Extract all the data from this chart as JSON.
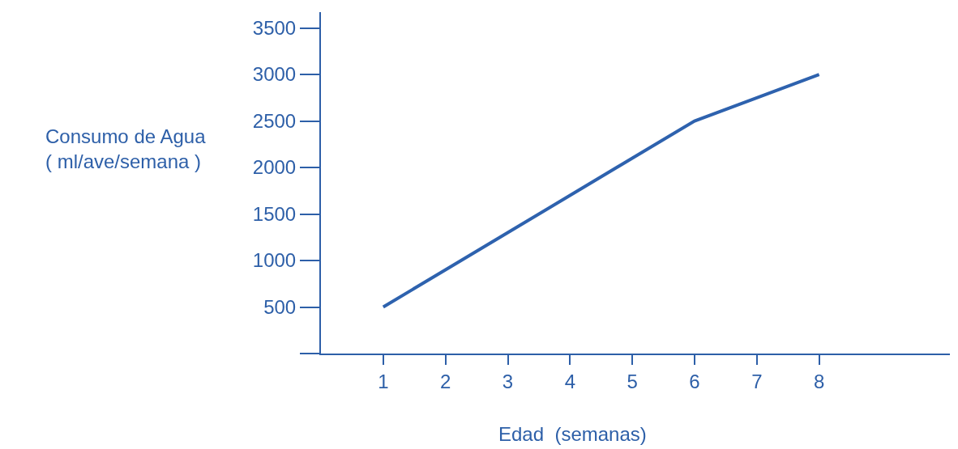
{
  "chart_data": {
    "type": "line",
    "xlabel": "Edad  (semanas)",
    "ylabel": "Consumo de Agua\n( ml/ave/semana )",
    "x": [
      1,
      2,
      3,
      4,
      5,
      6,
      7,
      8
    ],
    "series": [
      {
        "color": "#2e62ae",
        "values": [
          500,
          900,
          1300,
          1700,
          2100,
          2500,
          2750,
          3000
        ]
      }
    ],
    "xlim": [
      0,
      10.1
    ],
    "ylim": [
      0,
      3670
    ],
    "xticks": [
      1,
      2,
      3,
      4,
      5,
      6,
      7,
      8
    ],
    "yticks": [
      {
        "value": 0,
        "label": null
      },
      500,
      1000,
      1500,
      2000,
      2500,
      3000,
      3500
    ],
    "legend": false,
    "marker": "none",
    "line_style": "solid"
  }
}
